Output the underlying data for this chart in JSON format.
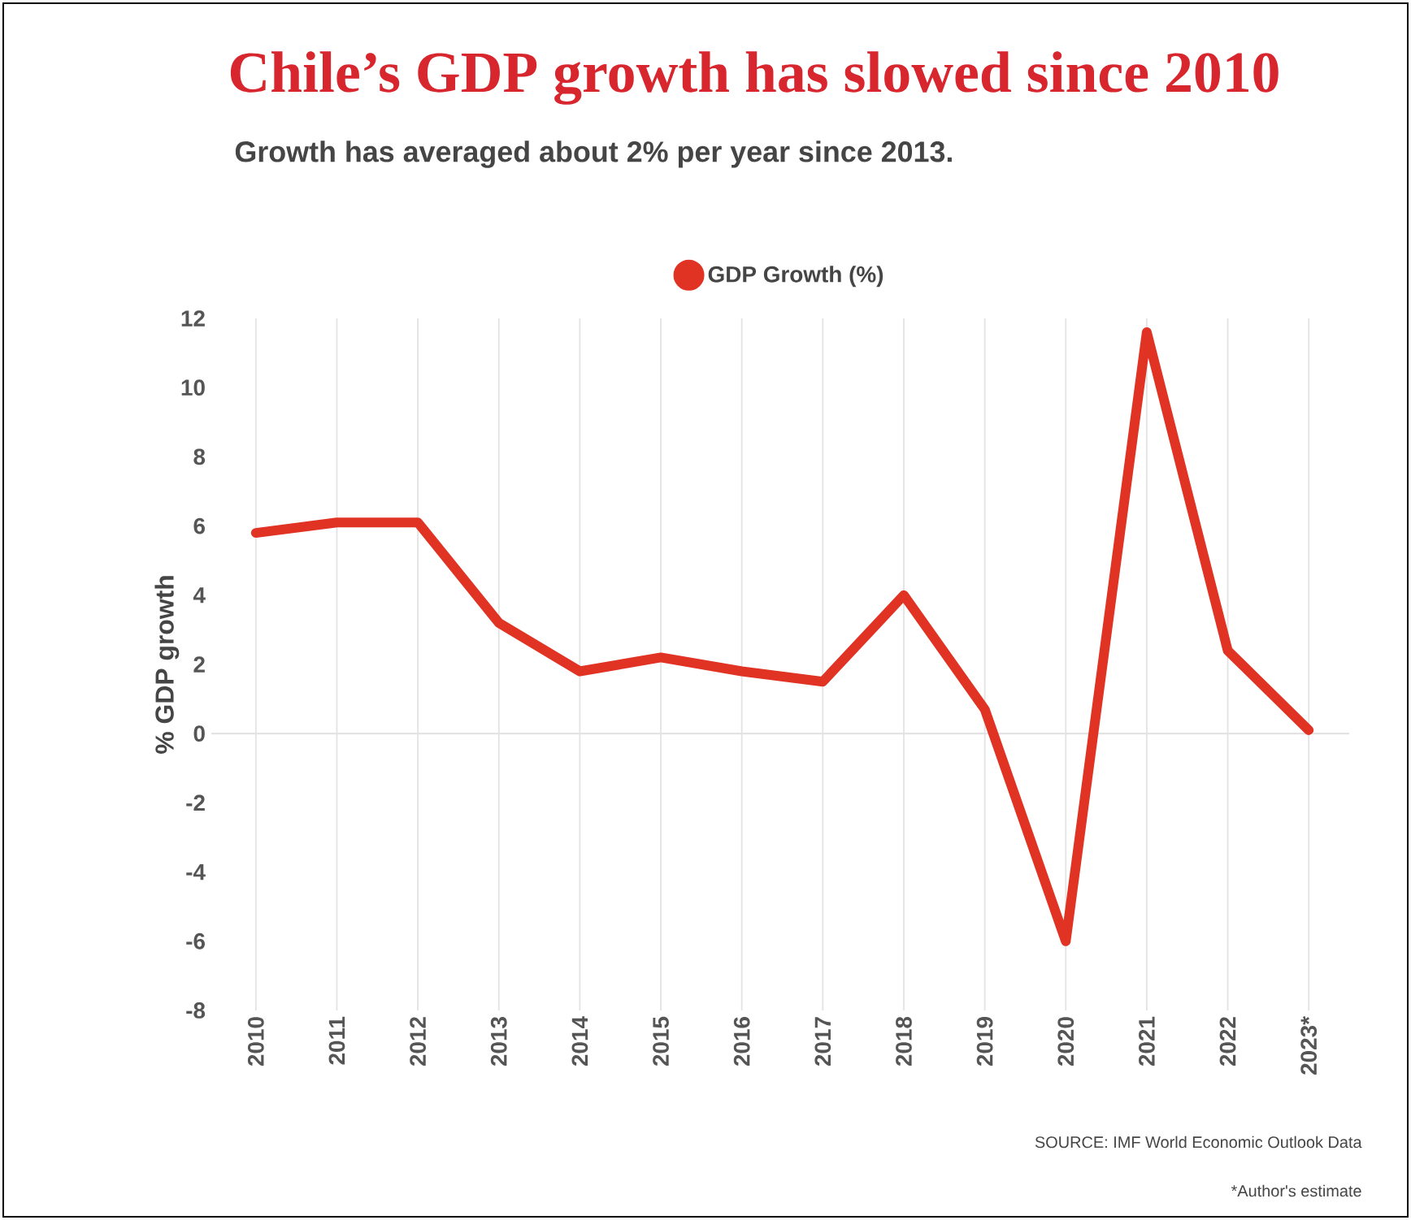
{
  "chart_data": {
    "type": "line",
    "title": "Chile’s GDP growth has slowed since 2010",
    "subtitle": "Growth has averaged about 2% per year since 2013.",
    "ylabel": "% GDP growth",
    "categories": [
      "2010",
      "2011",
      "2012",
      "2013",
      "2014",
      "2015",
      "2016",
      "2017",
      "2018",
      "2019",
      "2020",
      "2021",
      "2022",
      "2023*"
    ],
    "series": [
      {
        "name": "GDP Growth (%)",
        "color": "#e03323",
        "values": [
          5.8,
          6.1,
          6.1,
          3.2,
          1.8,
          2.2,
          1.8,
          1.5,
          4.0,
          0.7,
          -6.0,
          11.6,
          2.4,
          0.1
        ]
      }
    ],
    "ylim": [
      -8,
      12
    ],
    "yticks": [
      -8,
      -6,
      -4,
      -2,
      0,
      2,
      4,
      6,
      8,
      10,
      12
    ],
    "grid": "x",
    "legend": "top",
    "marker": "none",
    "line_style": "solid",
    "ref_lines": [
      {
        "axis": "y",
        "value": 0,
        "color": "#e3e3e3"
      }
    ],
    "annotations": [
      "SOURCE: IMF World Economic Outlook Data",
      "*Author's estimate"
    ]
  }
}
